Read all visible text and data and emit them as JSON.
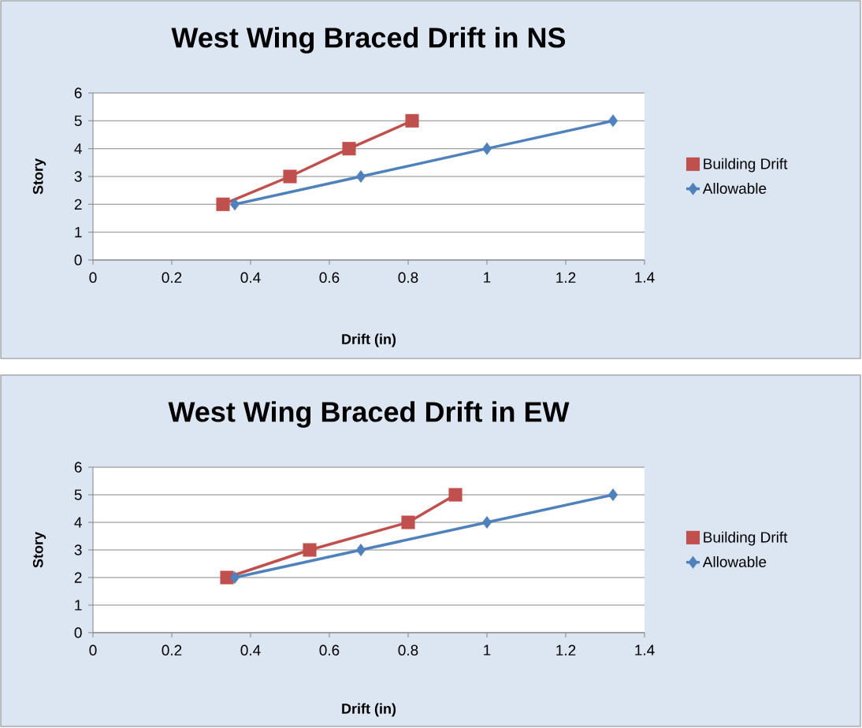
{
  "chart_data": [
    {
      "type": "line",
      "title": "West Wing Braced Drift in NS",
      "xlabel": "Drift (in)",
      "ylabel": "Story",
      "series": [
        {
          "name": "Building Drift",
          "color": "#c0504d",
          "marker": "square",
          "x": [
            0.33,
            0.5,
            0.65,
            0.81
          ],
          "values": [
            2,
            3,
            4,
            5
          ]
        },
        {
          "name": "Allowable",
          "color": "#4f81bd",
          "marker": "diamond",
          "x": [
            0.36,
            0.68,
            1.0,
            1.32
          ],
          "values": [
            2,
            3,
            4,
            5
          ]
        }
      ],
      "xlim": [
        0,
        1.4
      ],
      "ylim": [
        0,
        6
      ],
      "xticks": [
        0,
        0.2,
        0.4,
        0.6,
        0.8,
        1,
        1.2,
        1.4
      ],
      "yticks": [
        0,
        1,
        2,
        3,
        4,
        5,
        6
      ],
      "grid": "y",
      "legend": "right",
      "line_style": "solid"
    },
    {
      "type": "line",
      "title": "West Wing Braced Drift in EW",
      "xlabel": "Drift (in)",
      "ylabel": "Story",
      "series": [
        {
          "name": "Building Drift",
          "color": "#c0504d",
          "marker": "square",
          "x": [
            0.34,
            0.55,
            0.8,
            0.92
          ],
          "values": [
            2,
            3,
            4,
            5
          ]
        },
        {
          "name": "Allowable",
          "color": "#4f81bd",
          "marker": "diamond",
          "x": [
            0.36,
            0.68,
            1.0,
            1.32
          ],
          "values": [
            2,
            3,
            4,
            5
          ]
        }
      ],
      "xlim": [
        0,
        1.4
      ],
      "ylim": [
        0,
        6
      ],
      "xticks": [
        0,
        0.2,
        0.4,
        0.6,
        0.8,
        1,
        1.2,
        1.4
      ],
      "yticks": [
        0,
        1,
        2,
        3,
        4,
        5,
        6
      ],
      "grid": "y",
      "legend": "right",
      "line_style": "solid"
    }
  ]
}
